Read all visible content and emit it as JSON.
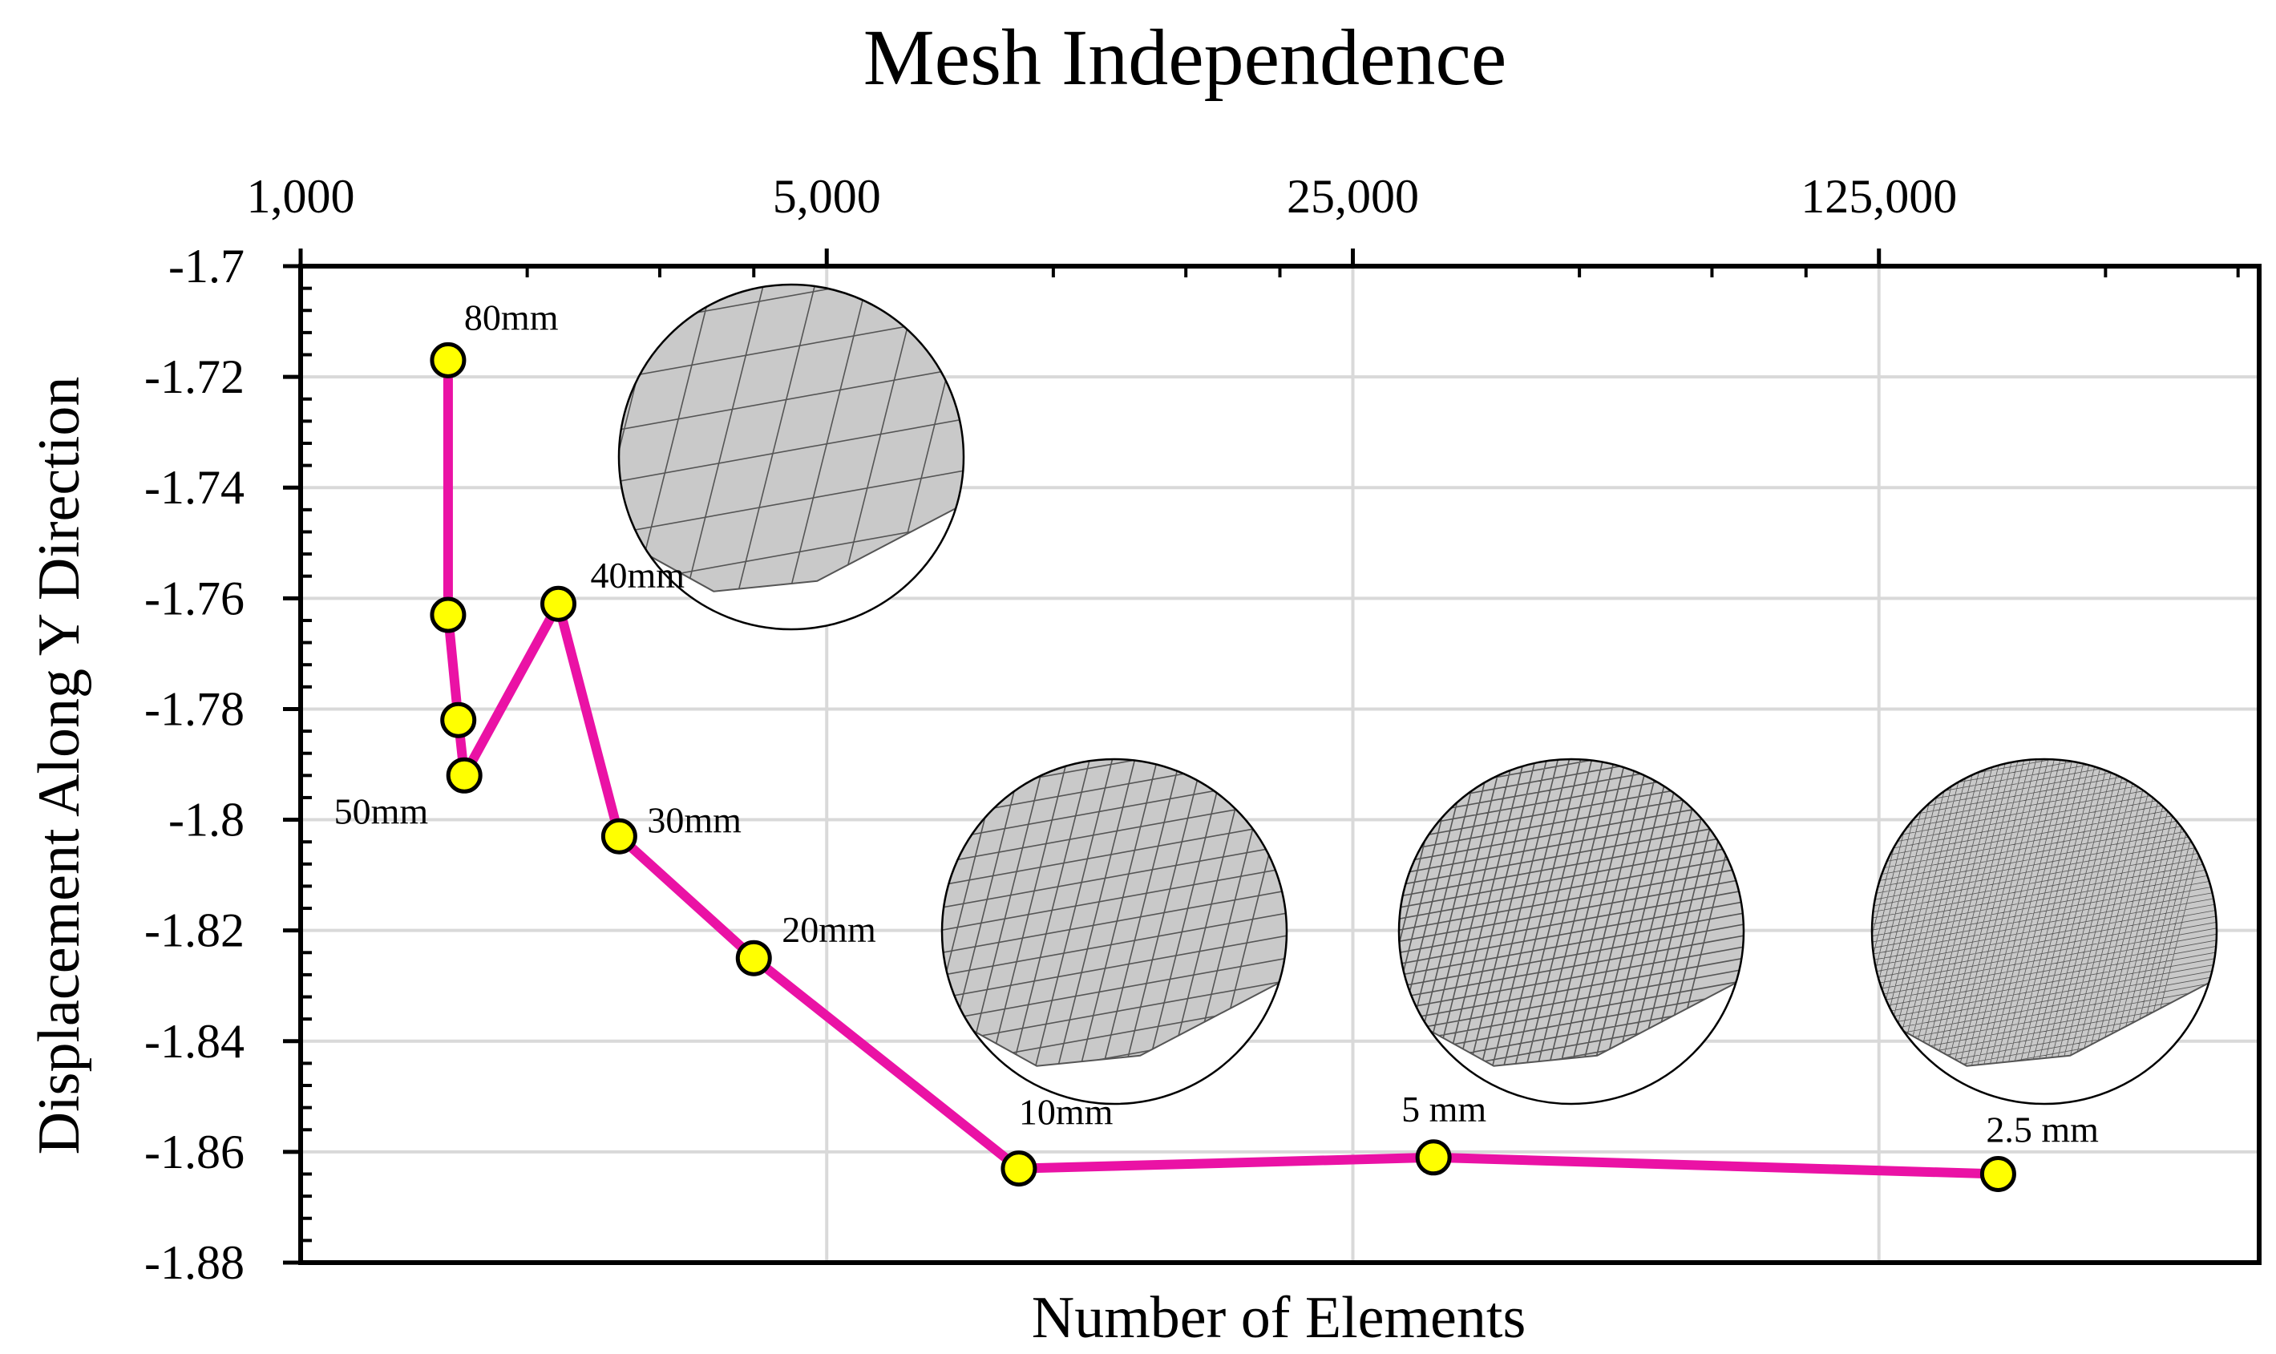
{
  "chart_data": {
    "type": "line",
    "title": "Mesh Independence",
    "xlabel": "Number of Elements",
    "ylabel": "Displacement Along Y Direction",
    "x_scale": "log5",
    "x_ticks": [
      1000,
      5000,
      25000,
      125000
    ],
    "x_tick_labels": [
      "1,000",
      "5,000",
      "25,000",
      "125,000"
    ],
    "xlim": [
      1000,
      400000
    ],
    "ylim": [
      -1.88,
      -1.7
    ],
    "y_ticks": [
      -1.7,
      -1.72,
      -1.74,
      -1.76,
      -1.78,
      -1.8,
      -1.82,
      -1.84,
      -1.86,
      -1.88
    ],
    "y_tick_labels": [
      "-1.7",
      "-1.72",
      "-1.74",
      "-1.76",
      "-1.78",
      "-1.8",
      "-1.82",
      "-1.84",
      "-1.86",
      "-1.88"
    ],
    "grid": true,
    "series": [
      {
        "color": "#ea12a5",
        "marker_color": "#ffff00",
        "points": [
          {
            "x": 1570,
            "y": -1.717,
            "label": "80mm"
          },
          {
            "x": 1570,
            "y": -1.763,
            "label": ""
          },
          {
            "x": 1620,
            "y": -1.782,
            "label": ""
          },
          {
            "x": 1650,
            "y": -1.792,
            "label": "50mm"
          },
          {
            "x": 2200,
            "y": -1.761,
            "label": "40mm"
          },
          {
            "x": 2650,
            "y": -1.803,
            "label": "30mm"
          },
          {
            "x": 4000,
            "y": -1.825,
            "label": "20mm"
          },
          {
            "x": 9000,
            "y": -1.863,
            "label": "10mm"
          },
          {
            "x": 32000,
            "y": -1.861,
            "label": "5 mm"
          },
          {
            "x": 180000,
            "y": -1.864,
            "label": "2.5 mm"
          }
        ]
      }
    ]
  },
  "insets": [
    {
      "name": "mesh-inset-coarse",
      "label_ref": "40mm",
      "divisions": 7
    },
    {
      "name": "mesh-inset-10mm",
      "label_ref": "10mm",
      "divisions": 16
    },
    {
      "name": "mesh-inset-5mm",
      "label_ref": "5 mm",
      "divisions": 32
    },
    {
      "name": "mesh-inset-2-5mm",
      "label_ref": "2.5 mm",
      "divisions": 60
    }
  ],
  "colors": {
    "grid": "#d9d9d9",
    "axis": "#000000",
    "mesh_fill": "#c9c9c9",
    "mesh_line": "#555555"
  }
}
